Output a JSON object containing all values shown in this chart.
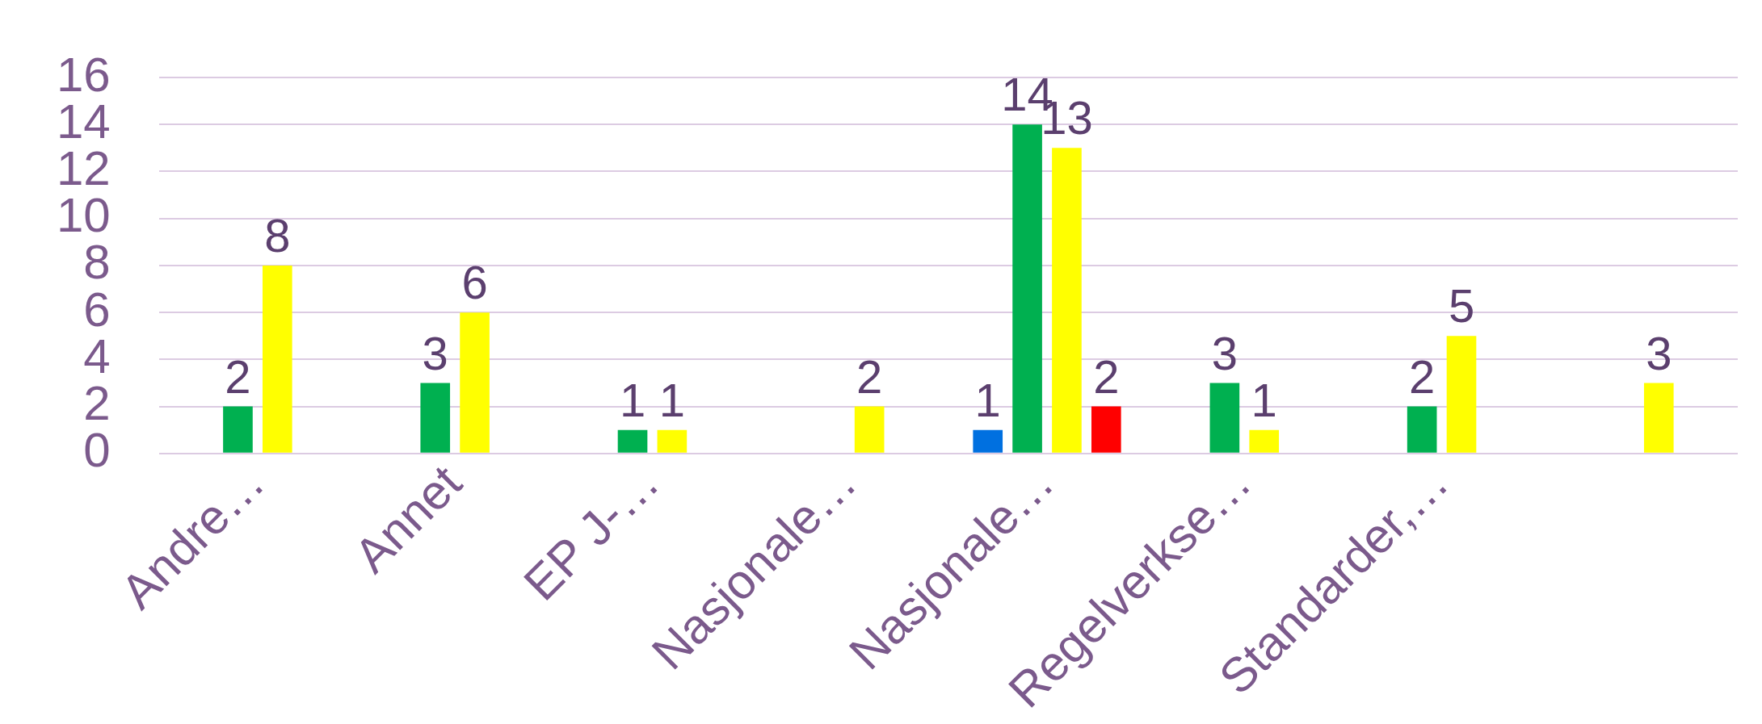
{
  "chart_data": {
    "type": "bar",
    "categories": [
      "Andre…",
      "Annet",
      "EP J-…",
      "Nasjonale…",
      "Nasjonale…",
      "Regelverkse…",
      "Standarder,…",
      null
    ],
    "series": [
      {
        "color": "#0070e0",
        "values": [
          null,
          null,
          null,
          null,
          1,
          null,
          null,
          null
        ]
      },
      {
        "color": "#00b050",
        "values": [
          2,
          3,
          1,
          null,
          14,
          3,
          2,
          null
        ]
      },
      {
        "color": "#ffff00",
        "values": [
          8,
          6,
          1,
          2,
          13,
          1,
          5,
          3
        ]
      },
      {
        "color": "#ff0000",
        "values": [
          null,
          null,
          null,
          null,
          2,
          null,
          null,
          null
        ]
      }
    ],
    "ylim": [
      0,
      16
    ],
    "yticks": [
      0,
      2,
      4,
      6,
      8,
      10,
      12,
      14,
      16
    ],
    "grid": "y",
    "legend": false,
    "data_labels": true
  }
}
